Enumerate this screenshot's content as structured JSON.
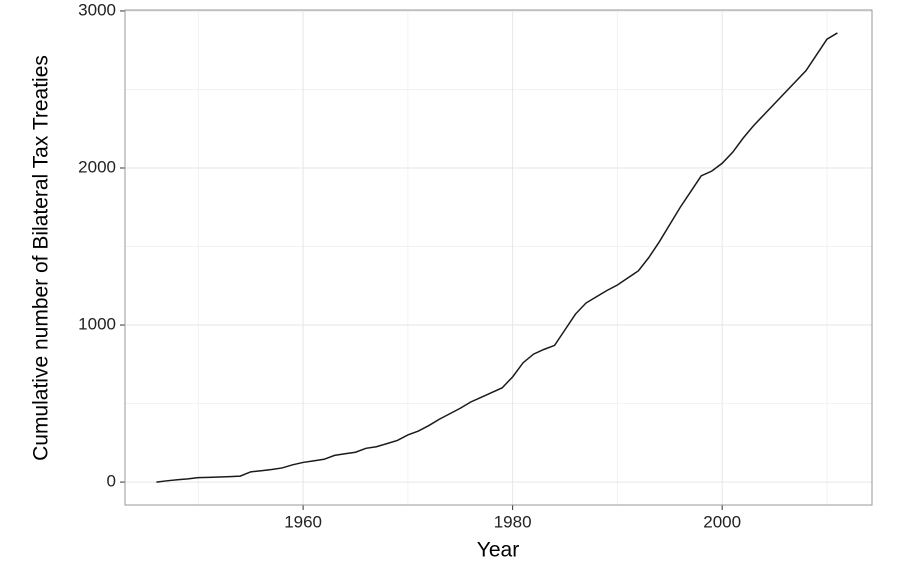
{
  "chart_data": {
    "type": "line",
    "x_label": "Year",
    "y_label": "Cumulative number of Bilateral Tax Treaties",
    "x": [
      1946,
      1947,
      1948,
      1949,
      1950,
      1951,
      1952,
      1953,
      1954,
      1955,
      1956,
      1957,
      1958,
      1959,
      1960,
      1961,
      1962,
      1963,
      1964,
      1965,
      1966,
      1967,
      1968,
      1969,
      1970,
      1971,
      1972,
      1973,
      1974,
      1975,
      1976,
      1977,
      1978,
      1979,
      1980,
      1981,
      1982,
      1983,
      1984,
      1985,
      1986,
      1987,
      1988,
      1989,
      1990,
      1991,
      1992,
      1993,
      1994,
      1995,
      1996,
      1997,
      1998,
      1999,
      2000,
      2001,
      2002,
      2003,
      2004,
      2005,
      2006,
      2007,
      2008,
      2009,
      2010,
      2011
    ],
    "series": [
      {
        "color": "#1a1a1a",
        "values": [
          0,
          8,
          15,
          20,
          28,
          30,
          32,
          35,
          38,
          65,
          72,
          80,
          90,
          110,
          125,
          135,
          145,
          170,
          180,
          190,
          215,
          225,
          245,
          265,
          300,
          325,
          360,
          400,
          435,
          470,
          510,
          540,
          570,
          600,
          670,
          760,
          815,
          845,
          870,
          970,
          1070,
          1140,
          1180,
          1220,
          1255,
          1300,
          1345,
          1430,
          1530,
          1640,
          1750,
          1850,
          1950,
          1980,
          2030,
          2100,
          2190,
          2270,
          2340,
          2410,
          2480,
          2550,
          2620,
          2720,
          2820,
          2860
        ]
      }
    ],
    "xlim": [
      1943,
      2014.3
    ],
    "ylim": [
      -146,
      3006
    ],
    "xticks": [
      1960,
      1980,
      2000
    ],
    "yticks": [
      0,
      1000,
      2000,
      3000
    ],
    "minor_xticks": [
      1950,
      1970,
      1990,
      2010
    ],
    "minor_yticks": [
      500,
      1500,
      2500
    ],
    "grid": true
  }
}
